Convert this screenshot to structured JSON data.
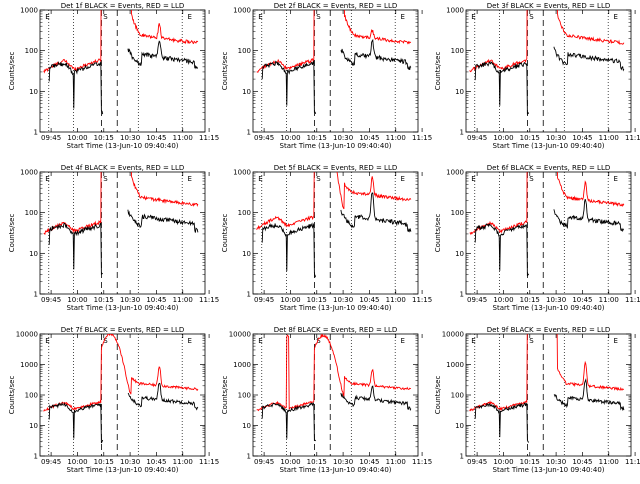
{
  "chart_data": {
    "type": "line",
    "layout_grid": "3x3",
    "x_ticks": [
      "09:45",
      "10:00",
      "10:15",
      "10:30",
      "10:45",
      "11:00",
      "11:15"
    ],
    "x_range_minutes": [
      -2,
      92
    ],
    "xlabel": "Start Time (13-Jun-10 09:40:40)",
    "ylabel": "Counts/sec",
    "y_scale": "log",
    "y_ticks_small": [
      "1",
      "10",
      "100",
      "1000"
    ],
    "y_ticks_large": [
      "1",
      "10",
      "100",
      "1000",
      "10000"
    ],
    "colors": {
      "events": "#000000",
      "lld": "#ff0000",
      "frame": "#000000"
    },
    "series_names": [
      "Events (BLACK)",
      "LLD (RED)"
    ],
    "vertical_markers": {
      "dotted_minutes": [
        3,
        17,
        54,
        79
      ],
      "dashed_minutes": [
        33,
        42
      ],
      "labels": [
        {
          "text": "E",
          "minute": 1
        },
        {
          "text": "S",
          "minute": 34
        },
        {
          "text": "E",
          "minute": 82
        }
      ]
    },
    "panels": [
      {
        "title": "Det 1f BLACK = Events, RED = LLD",
        "ymax_exp": 3,
        "flare": "sharp",
        "lld_base": 30,
        "ev_base": 25,
        "late_bump": 260,
        "ev_bump": 120
      },
      {
        "title": "Det 2f BLACK = Events, RED = LLD",
        "ymax_exp": 3,
        "flare": "sharp",
        "lld_base": 30,
        "ev_base": 25,
        "late_bump": 120,
        "ev_bump": 110
      },
      {
        "title": "Det 3f BLACK = Events, RED = LLD",
        "ymax_exp": 3,
        "flare": "sharp",
        "lld_base": 30,
        "ev_base": 25,
        "late_bump": 0,
        "ev_bump": 0
      },
      {
        "title": "Det 4f BLACK = Events, RED = LLD",
        "ymax_exp": 3,
        "flare": "sharp",
        "lld_base": 30,
        "ev_base": 25,
        "late_bump": 0,
        "ev_bump": 0
      },
      {
        "title": "Det 5f BLACK = Events, RED = LLD",
        "ymax_exp": 3,
        "flare": "broad",
        "lld_base": 40,
        "ev_base": 25,
        "late_bump": 500,
        "ev_bump": 250
      },
      {
        "title": "Det 6f BLACK = Events, RED = LLD",
        "ymax_exp": 3,
        "flare": "sharp",
        "lld_base": 30,
        "ev_base": 25,
        "late_bump": 350,
        "ev_bump": 140
      },
      {
        "title": "Det 7f BLACK = Events, RED = LLD",
        "ymax_exp": 4,
        "flare": "broad",
        "lld_base": 30,
        "ev_base": 25,
        "late_bump": 700,
        "ev_bump": 180
      },
      {
        "title": "Det 8f BLACK = Events, RED = LLD",
        "ymax_exp": 4,
        "flare": "broad_spike",
        "lld_base": 30,
        "ev_base": 25,
        "late_bump": 500,
        "ev_bump": 120
      },
      {
        "title": "Det 9f BLACK = Events, RED = LLD",
        "ymax_exp": 4,
        "flare": "sharp",
        "lld_base": 30,
        "ev_base": 25,
        "late_bump": 900,
        "ev_bump": 250
      }
    ]
  }
}
